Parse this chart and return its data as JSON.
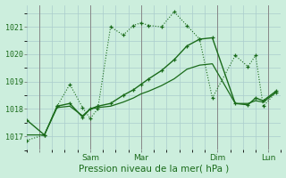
{
  "xlabel": "Pression niveau de la mer( hPa )",
  "bg_color": "#cceedd",
  "grid_color": "#aacccc",
  "line_color": "#1a6b1a",
  "ylim": [
    1016.5,
    1021.8
  ],
  "yticks": [
    1017,
    1018,
    1019,
    1020,
    1021
  ],
  "xlim": [
    0,
    10.0
  ],
  "xtick_pos": [
    0.5,
    2.5,
    4.5,
    7.5,
    9.5
  ],
  "xtick_labels": [
    "",
    "Sam",
    "Mar",
    "Dim",
    "Lun"
  ],
  "vline_pos": [
    0.5,
    2.5,
    4.5,
    7.5,
    9.5
  ],
  "series1_x": [
    0.0,
    0.7,
    1.2,
    1.7,
    2.2,
    2.5,
    2.8,
    3.3,
    3.8,
    4.2,
    4.5,
    4.8,
    5.3,
    5.8,
    6.3,
    6.8,
    7.3,
    8.2,
    8.7,
    9.0,
    9.3,
    9.8
  ],
  "series1_y": [
    1016.85,
    1017.05,
    1018.1,
    1018.9,
    1018.05,
    1017.65,
    1018.0,
    1021.0,
    1020.7,
    1021.05,
    1021.15,
    1021.05,
    1021.0,
    1021.55,
    1021.05,
    1020.55,
    1018.4,
    1019.95,
    1019.55,
    1019.95,
    1018.1,
    1018.6
  ],
  "series2_x": [
    0.0,
    0.7,
    1.2,
    1.7,
    2.2,
    2.5,
    2.8,
    3.3,
    3.8,
    4.2,
    4.5,
    4.8,
    5.3,
    5.8,
    6.3,
    6.8,
    7.3,
    8.2,
    8.7,
    9.0,
    9.3,
    9.8
  ],
  "series2_y": [
    1017.6,
    1017.05,
    1018.1,
    1018.2,
    1017.7,
    1018.0,
    1018.1,
    1018.2,
    1018.5,
    1018.7,
    1018.9,
    1019.1,
    1019.4,
    1019.8,
    1020.3,
    1020.55,
    1020.6,
    1018.2,
    1018.15,
    1018.4,
    1018.3,
    1018.65
  ],
  "series3_x": [
    0.0,
    0.7,
    1.2,
    1.7,
    2.2,
    2.5,
    2.8,
    3.3,
    3.8,
    4.2,
    4.5,
    4.8,
    5.3,
    5.8,
    6.3,
    6.8,
    7.3,
    8.2,
    8.7,
    9.0,
    9.3,
    9.8
  ],
  "series3_y": [
    1017.05,
    1017.05,
    1018.05,
    1018.1,
    1017.75,
    1018.0,
    1018.05,
    1018.1,
    1018.25,
    1018.4,
    1018.55,
    1018.65,
    1018.85,
    1019.1,
    1019.45,
    1019.6,
    1019.65,
    1018.2,
    1018.2,
    1018.3,
    1018.25,
    1018.6
  ]
}
